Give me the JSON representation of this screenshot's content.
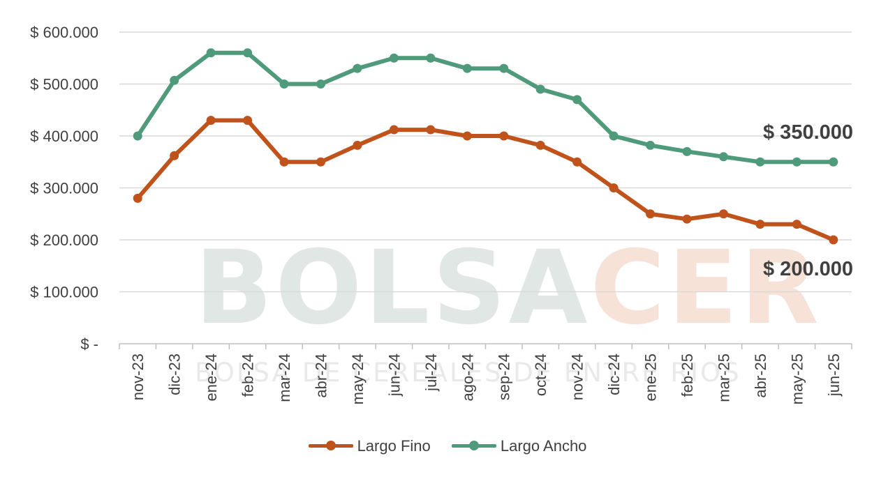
{
  "chart_data": {
    "type": "line",
    "categories": [
      "nov-23",
      "dic-23",
      "ene-24",
      "feb-24",
      "mar-24",
      "abr-24",
      "may-24",
      "jun-24",
      "jul-24",
      "ago-24",
      "sep-24",
      "oct-24",
      "nov-24",
      "dic-24",
      "ene-25",
      "feb-25",
      "mar-25",
      "abr-25",
      "may-25",
      "jun-25"
    ],
    "series": [
      {
        "name": "Largo Fino",
        "color": "#c0521b",
        "values": [
          280000,
          362000,
          430000,
          430000,
          350000,
          350000,
          382000,
          412000,
          412000,
          400000,
          400000,
          382000,
          350000,
          300000,
          250000,
          240000,
          250000,
          230000,
          230000,
          200000
        ]
      },
      {
        "name": "Largo Ancho",
        "color": "#4f9a7a",
        "values": [
          400000,
          507000,
          560000,
          560000,
          500000,
          500000,
          530000,
          550000,
          550000,
          530000,
          530000,
          490000,
          470000,
          400000,
          382000,
          370000,
          360000,
          350000,
          350000,
          350000
        ]
      }
    ],
    "y_ticks": [
      0,
      100000,
      200000,
      300000,
      400000,
      500000,
      600000
    ],
    "y_tick_labels": [
      "$ -",
      "$ 100.000",
      "$ 200.000",
      "$ 300.000",
      "$ 400.000",
      "$ 500.000",
      "$ 600.000"
    ],
    "ylim": [
      0,
      600000
    ],
    "grid": true,
    "legend_position": "bottom",
    "annotations": [
      "$ 350.000",
      "$ 200.000"
    ]
  },
  "watermark": {
    "main_a": "BOLSA",
    "main_b": "CER",
    "sub": "BOLSA DE CEREALES DE ENTRE RIOS"
  }
}
